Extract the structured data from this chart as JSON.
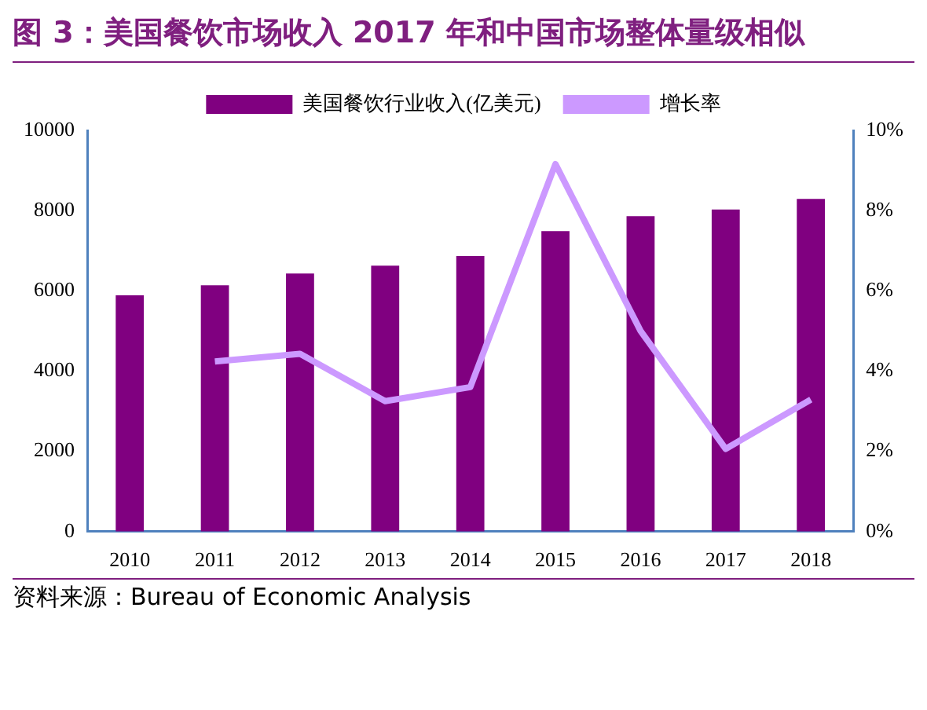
{
  "chart_data": {
    "type": "bar",
    "title": "图 3：美国餐饮市场收入 2017 年和中国市场整体量级相似",
    "categories": [
      "2010",
      "2011",
      "2012",
      "2013",
      "2014",
      "2015",
      "2016",
      "2017",
      "2018"
    ],
    "series": [
      {
        "name": "美国餐饮行业收入(亿美元)",
        "color": "#800080",
        "values": [
          5890,
          6140,
          6430,
          6630,
          6870,
          7490,
          7860,
          8030,
          8290
        ]
      },
      {
        "name": "增长率",
        "type": "line",
        "axis": "y2",
        "color": "#cc99ff",
        "values": [
          null,
          4.24,
          4.43,
          3.25,
          3.6,
          9.16,
          5.0,
          2.06,
          3.29
        ]
      }
    ],
    "ylim": [
      0,
      10000
    ],
    "yticks": [
      0,
      2000,
      4000,
      6000,
      8000,
      10000
    ],
    "y2lim": [
      0,
      10
    ],
    "y2ticks": [
      {
        "value": 0,
        "label": "0%"
      },
      {
        "value": 2,
        "label": "2%"
      },
      {
        "value": 4,
        "label": "4%"
      },
      {
        "value": 6,
        "label": "6%"
      },
      {
        "value": 8,
        "label": "8%"
      },
      {
        "value": 10,
        "label": "10%"
      }
    ],
    "legend": "top",
    "grid": false,
    "marker": "none",
    "line_style": "solid",
    "annotations": [
      "资料来源：Bureau of Economic Analysis"
    ]
  }
}
